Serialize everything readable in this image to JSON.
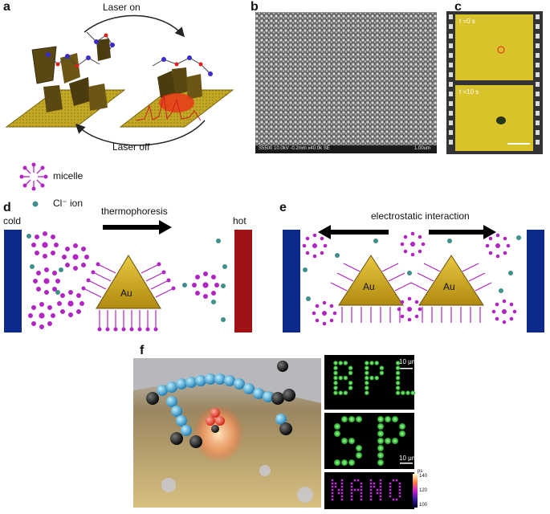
{
  "panels": {
    "a": {
      "label": "a",
      "laser_on": "Laser on",
      "laser_off": "Laser off"
    },
    "b": {
      "label": "b",
      "sem_info": "S5500 10.0kV -0.2mm x40.0k SE",
      "sem_scale": "1.00um"
    },
    "c": {
      "label": "c",
      "frame1_time": "t =0 s",
      "frame2_time": "t =10 s"
    },
    "legend": {
      "micelle": "micelle",
      "cl_ion": "Cl⁻ ion"
    },
    "d": {
      "label": "d",
      "cold": "cold",
      "hot": "hot",
      "thermophoresis": "thermophoresis",
      "au": "Au"
    },
    "e": {
      "label": "e",
      "electrostatic": "electrostatic interaction",
      "au_left": "Au",
      "au_right": "Au"
    },
    "f": {
      "label": "f",
      "scale_top": "10 μm",
      "scale_mid": "10 μm",
      "colorbar_unit": "ps",
      "colorbar_max": "140",
      "colorbar_mid": "120",
      "colorbar_min": "100",
      "letters_top": "BPL",
      "letters_mid": "SP",
      "letters_bottom": "NANO"
    }
  },
  "colors": {
    "gold_substrate": "#b59a18",
    "micelle": "#b224c4",
    "cl_ion": "#3f8f8c",
    "cold_wall": "#0b2a8c",
    "hot_wall": "#a01216",
    "green_particles": "#3ecf3e",
    "film_yellow": "#d9c22a"
  }
}
